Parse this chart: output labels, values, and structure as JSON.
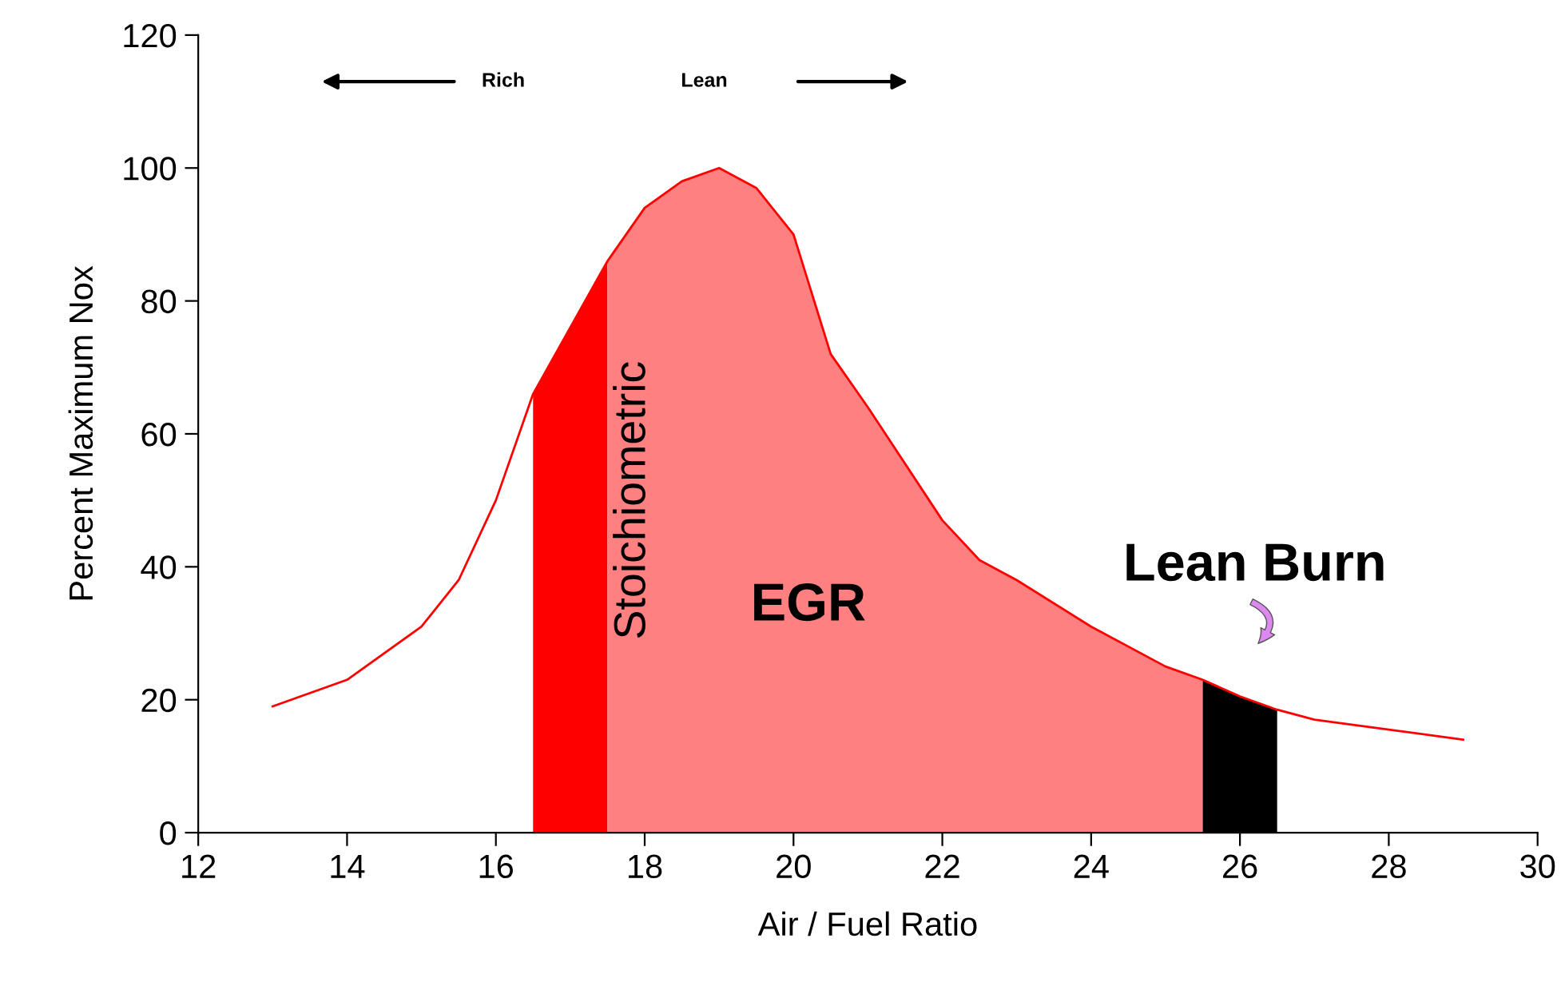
{
  "chart_data": {
    "type": "line",
    "xlabel": "Air / Fuel Ratio",
    "ylabel": "Percent Maximum Nox",
    "xlim": [
      12,
      30
    ],
    "xticks": [
      12,
      14,
      16,
      18,
      20,
      22,
      24,
      26,
      28,
      30
    ],
    "ylim": [
      0,
      120
    ],
    "yticks": [
      0,
      20,
      40,
      60,
      80,
      100,
      120
    ],
    "grid": false,
    "legend": false,
    "series": [
      {
        "type": "area",
        "color": "#ff0000",
        "x": [
          16.5,
          17,
          17.5
        ],
        "values": [
          66,
          76,
          86
        ]
      },
      {
        "type": "area",
        "color": "#ff8080",
        "x": [
          17.5,
          18,
          18.5,
          19,
          19.5,
          20,
          20.5,
          21,
          22,
          22.5,
          23,
          24,
          25,
          25.5
        ],
        "values": [
          86,
          94,
          98,
          100,
          97,
          90,
          72,
          64,
          47,
          41,
          38,
          31,
          25,
          23
        ]
      },
      {
        "type": "area",
        "color": "#000000",
        "x": [
          25.5,
          26,
          26.5
        ],
        "values": [
          23,
          20.5,
          18.5
        ]
      },
      {
        "color": "#ff0000",
        "x": [
          13,
          14,
          15,
          15.5,
          16,
          16.5,
          17,
          17.5,
          18,
          18.5,
          19,
          19.5,
          20,
          20.5,
          21,
          22,
          22.5,
          23,
          24,
          25,
          25.5,
          26,
          26.5,
          27,
          28,
          29
        ],
        "values": [
          19,
          23,
          31,
          38,
          50,
          66,
          76,
          86,
          94,
          98,
          100,
          97,
          90,
          72,
          64,
          47,
          41,
          38,
          31,
          25,
          23,
          20.5,
          18.5,
          17,
          15.5,
          14
        ]
      }
    ],
    "annotations": [
      "Rich",
      "Lean",
      "Stoichiometric",
      "EGR",
      "Lean Burn"
    ]
  }
}
